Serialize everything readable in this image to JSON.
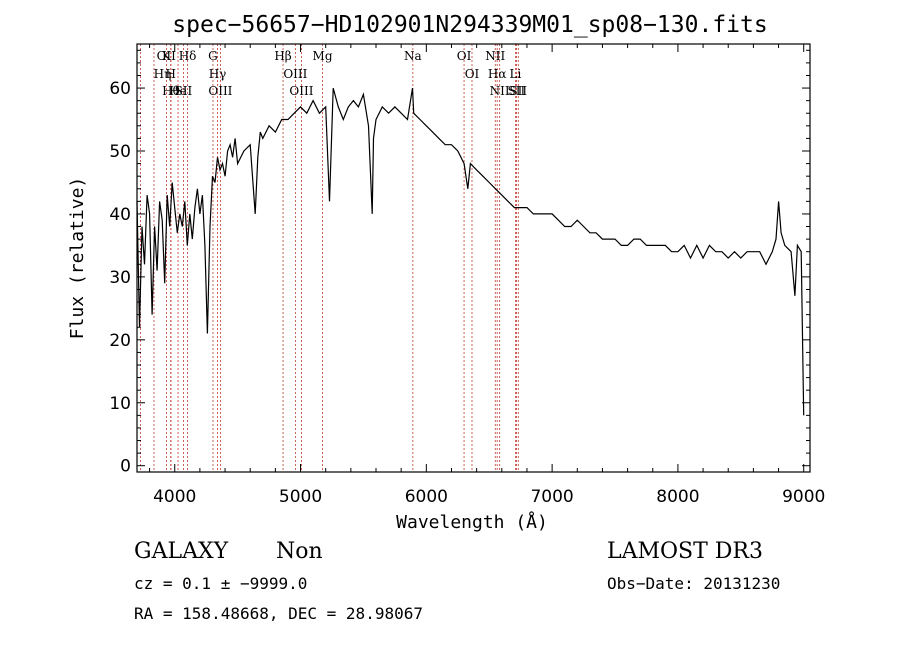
{
  "chart_data": {
    "type": "line",
    "title": "spec−56657−HD102901N294339M01_sp08−130.fits",
    "xlabel": "Wavelength (Å)",
    "ylabel": "Flux (relative)",
    "xlim": [
      3700,
      9050
    ],
    "ylim": [
      -1,
      67
    ],
    "xticks": [
      4000,
      5000,
      6000,
      7000,
      8000,
      9000
    ],
    "yticks": [
      0,
      10,
      20,
      30,
      40,
      50,
      60
    ],
    "grid": false,
    "series": [
      {
        "x": [
          3700,
          3720,
          3740,
          3760,
          3780,
          3800,
          3820,
          3840,
          3860,
          3880,
          3900,
          3920,
          3940,
          3960,
          3980,
          4000,
          4020,
          4040,
          4060,
          4080,
          4100,
          4120,
          4140,
          4160,
          4180,
          4200,
          4220,
          4240,
          4260,
          4280,
          4300,
          4320,
          4340,
          4360,
          4380,
          4400,
          4420,
          4440,
          4460,
          4480,
          4500,
          4550,
          4600,
          4640,
          4660,
          4680,
          4700,
          4750,
          4800,
          4850,
          4900,
          4950,
          5000,
          5050,
          5100,
          5150,
          5200,
          5230,
          5260,
          5300,
          5340,
          5380,
          5420,
          5460,
          5500,
          5540,
          5570,
          5580,
          5600,
          5650,
          5700,
          5750,
          5800,
          5850,
          5890,
          5900,
          5950,
          6000,
          6050,
          6100,
          6150,
          6200,
          6250,
          6300,
          6330,
          6350,
          6400,
          6450,
          6500,
          6550,
          6600,
          6650,
          6700,
          6750,
          6800,
          6850,
          6900,
          6950,
          7000,
          7050,
          7100,
          7150,
          7200,
          7250,
          7300,
          7350,
          7400,
          7450,
          7500,
          7550,
          7600,
          7650,
          7700,
          7750,
          7800,
          7850,
          7900,
          7950,
          8000,
          8050,
          8100,
          8150,
          8200,
          8250,
          8300,
          8350,
          8400,
          8450,
          8500,
          8550,
          8600,
          8650,
          8700,
          8750,
          8780,
          8800,
          8820,
          8850,
          8900,
          8930,
          8950,
          8980,
          9000
        ],
        "y": [
          42,
          22,
          38,
          32,
          43,
          40,
          24,
          38,
          31,
          42,
          39,
          29,
          43,
          38,
          45,
          41,
          37,
          40,
          38,
          42,
          35,
          40,
          36,
          41,
          44,
          40,
          43,
          35,
          21,
          38,
          46,
          45,
          49,
          47,
          48,
          46,
          50,
          51,
          49,
          52,
          48,
          50,
          51,
          40,
          49,
          53,
          52,
          54,
          53,
          55,
          55,
          56,
          57,
          56,
          58,
          56,
          57,
          42,
          60,
          57,
          55,
          57,
          58,
          57,
          59,
          54,
          40,
          52,
          55,
          57,
          56,
          57,
          56,
          55,
          60,
          56,
          55,
          54,
          53,
          52,
          51,
          51,
          50,
          48,
          44,
          48,
          47,
          46,
          45,
          44,
          43,
          42,
          41,
          41,
          41,
          40,
          40,
          40,
          40,
          39,
          38,
          38,
          39,
          38,
          37,
          37,
          36,
          36,
          36,
          35,
          35,
          36,
          36,
          35,
          35,
          35,
          35,
          34,
          34,
          35,
          33,
          35,
          33,
          35,
          34,
          34,
          33,
          34,
          33,
          34,
          34,
          34,
          32,
          34,
          36,
          42,
          37,
          35,
          34,
          27,
          35,
          34,
          8
        ]
      }
    ],
    "lines": [
      {
        "name": "Hθ",
        "wl": 3970
      },
      {
        "name": "OII",
        "wl": 3727
      },
      {
        "name": "He",
        "wl": 4026
      },
      {
        "name": "Hη",
        "wl": 3835
      },
      {
        "name": "K",
        "wl": 3934
      },
      {
        "name": "H",
        "wl": 3968
      },
      {
        "name": "Hδ",
        "wl": 4102
      },
      {
        "name": "SII",
        "wl": 4069
      },
      {
        "name": "OIII",
        "wl": 4363
      },
      {
        "name": "Hγ",
        "wl": 4340
      },
      {
        "name": "G",
        "wl": 4304
      },
      {
        "name": "Hβ",
        "wl": 4861
      },
      {
        "name": "OIII",
        "wl": 4959
      },
      {
        "name": "OIII",
        "wl": 5007
      },
      {
        "name": "Mg",
        "wl": 5175
      },
      {
        "name": "Na",
        "wl": 5893
      },
      {
        "name": "OI",
        "wl": 6300
      },
      {
        "name": "OI",
        "wl": 6363
      },
      {
        "name": "Hα",
        "wl": 6563
      },
      {
        "name": "NII",
        "wl": 6548
      },
      {
        "name": "NII",
        "wl": 6583
      },
      {
        "name": "SII",
        "wl": 6716
      },
      {
        "name": "Li",
        "wl": 6708
      },
      {
        "name": "SII",
        "wl": 6731
      }
    ]
  },
  "info": {
    "class": "GALAXY",
    "subclass": "Non",
    "survey": "LAMOST DR3",
    "cz": "cz = 0.1 ± −9999.0",
    "obs_date": "Obs−Date: 20131230",
    "radec": "RA = 158.48668, DEC =  28.98067"
  }
}
